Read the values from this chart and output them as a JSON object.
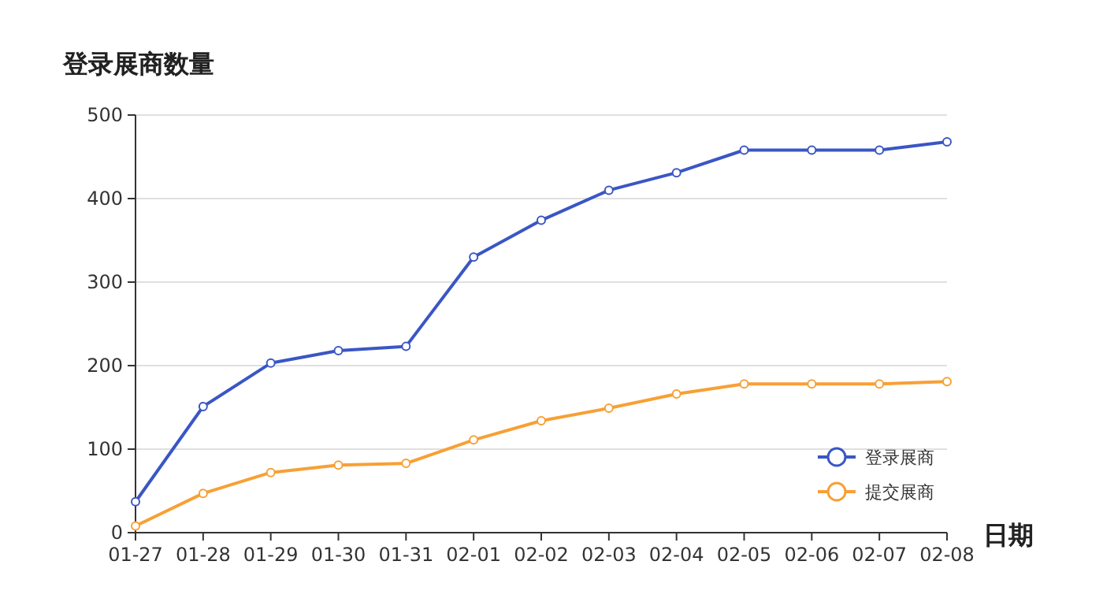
{
  "chart_data": {
    "type": "line",
    "title": "登录展商数量",
    "xlabel": "日期",
    "categories": [
      "01-27",
      "01-28",
      "01-29",
      "01-30",
      "01-31",
      "02-01",
      "02-02",
      "02-03",
      "02-04",
      "02-05",
      "02-06",
      "02-07",
      "02-08"
    ],
    "series": [
      {
        "name": "登录展商",
        "color": "#3a56c5",
        "values": [
          37,
          151,
          203,
          218,
          223,
          330,
          374,
          410,
          431,
          458,
          458,
          458,
          468
        ]
      },
      {
        "name": "提交展商",
        "color": "#f7a035",
        "values": [
          8,
          47,
          72,
          81,
          83,
          111,
          134,
          149,
          166,
          178,
          178,
          178,
          181
        ]
      }
    ],
    "ylim": [
      0,
      500
    ],
    "yticks": [
      0,
      100,
      200,
      300,
      400,
      500
    ],
    "grid": "y",
    "legend": "bottom right",
    "marker": "circle",
    "line_style": "solid"
  }
}
